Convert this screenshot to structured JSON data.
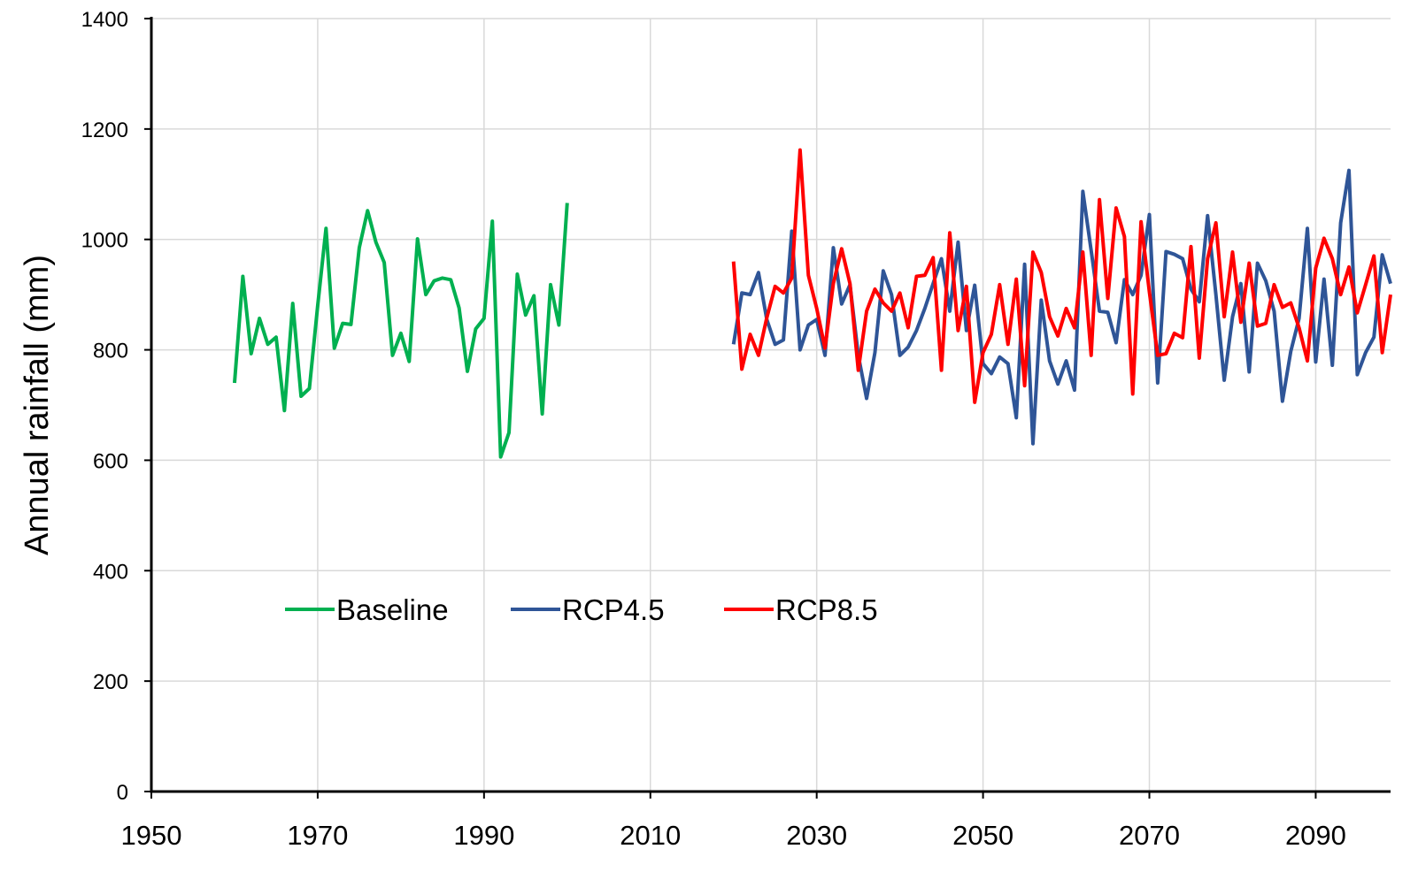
{
  "chart_data": {
    "type": "line",
    "y_label": "Annual rainfall (mm)",
    "xlim": [
      1950,
      2099
    ],
    "ylim": [
      0,
      1400
    ],
    "xticks": [
      1950,
      1970,
      1990,
      2010,
      2030,
      2050,
      2070,
      2090
    ],
    "yticks": [
      0,
      200,
      400,
      600,
      800,
      1000,
      1200,
      1400
    ],
    "grid": true,
    "legend": "bottom-left",
    "series": [
      {
        "name": "Baseline",
        "color": "#00b050",
        "x": [
          1960,
          1961,
          1962,
          1963,
          1964,
          1965,
          1966,
          1967,
          1968,
          1969,
          1970,
          1971,
          1972,
          1973,
          1974,
          1975,
          1976,
          1977,
          1978,
          1979,
          1980,
          1981,
          1982,
          1983,
          1984,
          1985,
          1986,
          1987,
          1988,
          1989,
          1990,
          1991,
          1992,
          1993,
          1994,
          1995,
          1996,
          1997,
          1998,
          1999,
          2000
        ],
        "values": [
          740,
          933,
          793,
          857,
          810,
          823,
          690,
          884,
          716,
          730,
          880,
          1020,
          803,
          848,
          846,
          985,
          1052,
          995,
          958,
          790,
          830,
          779,
          1001,
          900,
          925,
          930,
          927,
          876,
          761,
          838,
          857,
          1033,
          606,
          650,
          937,
          863,
          898,
          684,
          918,
          845,
          1066
        ]
      },
      {
        "name": "RCP4.5",
        "color": "#2f5597",
        "x": [
          2020,
          2021,
          2022,
          2023,
          2024,
          2025,
          2026,
          2027,
          2028,
          2029,
          2030,
          2031,
          2032,
          2033,
          2034,
          2035,
          2036,
          2037,
          2038,
          2039,
          2040,
          2041,
          2042,
          2043,
          2044,
          2045,
          2046,
          2047,
          2048,
          2049,
          2050,
          2051,
          2052,
          2053,
          2054,
          2055,
          2056,
          2057,
          2058,
          2059,
          2060,
          2061,
          2062,
          2063,
          2064,
          2065,
          2066,
          2067,
          2068,
          2069,
          2070,
          2071,
          2072,
          2073,
          2074,
          2075,
          2076,
          2077,
          2078,
          2079,
          2080,
          2081,
          2082,
          2083,
          2084,
          2085,
          2086,
          2087,
          2088,
          2089,
          2090,
          2091,
          2092,
          2093,
          2094,
          2095,
          2096,
          2097,
          2098,
          2099
        ],
        "values": [
          810,
          903,
          900,
          940,
          855,
          810,
          818,
          1015,
          800,
          845,
          855,
          790,
          985,
          883,
          918,
          790,
          712,
          795,
          943,
          900,
          790,
          805,
          835,
          875,
          920,
          965,
          870,
          995,
          835,
          917,
          775,
          757,
          787,
          775,
          677,
          955,
          630,
          890,
          780,
          738,
          780,
          727,
          1087,
          980,
          870,
          868,
          813,
          927,
          900,
          935,
          1045,
          740,
          978,
          973,
          965,
          910,
          887,
          1043,
          900,
          745,
          860,
          920,
          760,
          957,
          925,
          870,
          707,
          797,
          857,
          1020,
          778,
          928,
          772,
          1030,
          1125,
          755,
          795,
          823,
          972,
          920
        ]
      },
      {
        "name": "RCP8.5",
        "color": "#ff0000",
        "x": [
          2020,
          2021,
          2022,
          2023,
          2024,
          2025,
          2026,
          2027,
          2028,
          2029,
          2030,
          2031,
          2032,
          2033,
          2034,
          2035,
          2036,
          2037,
          2038,
          2039,
          2040,
          2041,
          2042,
          2043,
          2044,
          2045,
          2046,
          2047,
          2048,
          2049,
          2050,
          2051,
          2052,
          2053,
          2054,
          2055,
          2056,
          2057,
          2058,
          2059,
          2060,
          2061,
          2062,
          2063,
          2064,
          2065,
          2066,
          2067,
          2068,
          2069,
          2070,
          2071,
          2072,
          2073,
          2074,
          2075,
          2076,
          2077,
          2078,
          2079,
          2080,
          2081,
          2082,
          2083,
          2084,
          2085,
          2086,
          2087,
          2088,
          2089,
          2090,
          2091,
          2092,
          2093,
          2094,
          2095,
          2096,
          2097,
          2098,
          2099
        ],
        "values": [
          960,
          765,
          828,
          790,
          858,
          915,
          903,
          930,
          1162,
          935,
          875,
          803,
          920,
          983,
          920,
          763,
          870,
          910,
          885,
          870,
          903,
          840,
          933,
          935,
          967,
          763,
          1012,
          835,
          915,
          705,
          795,
          828,
          918,
          810,
          928,
          735,
          977,
          940,
          860,
          825,
          875,
          840,
          977,
          790,
          1072,
          893,
          1057,
          1005,
          720,
          1032,
          905,
          790,
          793,
          830,
          822,
          987,
          785,
          965,
          1030,
          860,
          977,
          850,
          957,
          843,
          848,
          918,
          877,
          885,
          840,
          780,
          948,
          1002,
          965,
          900,
          950,
          867,
          918,
          970,
          795,
          900
        ]
      }
    ]
  }
}
